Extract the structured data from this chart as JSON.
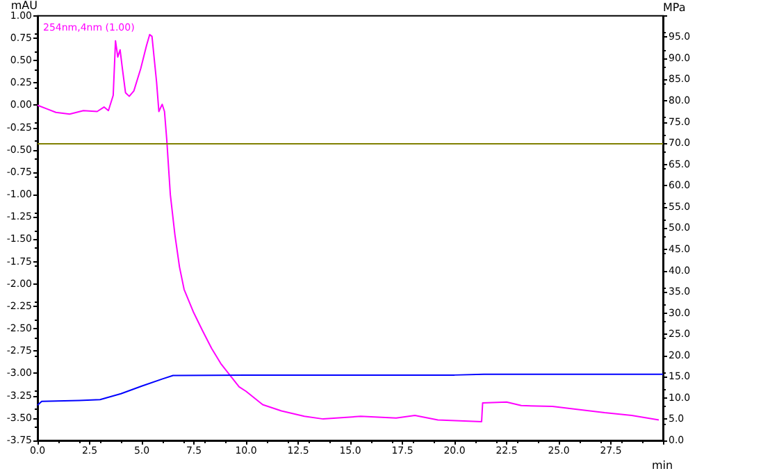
{
  "chart_data": {
    "type": "line",
    "ylabel": "mAU",
    "y2label": "MPa",
    "xlabel": "min",
    "legend": "top left",
    "grid": false,
    "marker": "none",
    "line_style": "solid",
    "xlim": [
      0,
      30
    ],
    "xticks": [
      {
        "value": 0,
        "label": "0.0"
      },
      {
        "value": 2.5,
        "label": "2.5"
      },
      {
        "value": 5,
        "label": "5.0"
      },
      {
        "value": 7.5,
        "label": "7.5"
      },
      {
        "value": 10,
        "label": "10.0"
      },
      {
        "value": 12.5,
        "label": "12.5"
      },
      {
        "value": 15,
        "label": "15.0"
      },
      {
        "value": 17.5,
        "label": "17.5"
      },
      {
        "value": 20,
        "label": "20.0"
      },
      {
        "value": 22.5,
        "label": "22.5"
      },
      {
        "value": 25,
        "label": "25.0"
      },
      {
        "value": 27.5,
        "label": "27.5"
      },
      {
        "value": 30,
        "label": null
      }
    ],
    "ylim": [
      -3.75,
      1
    ],
    "yticks": [
      {
        "value": -3.75,
        "label": "-3.75"
      },
      {
        "value": -3.5,
        "label": "-3.50"
      },
      {
        "value": -3.25,
        "label": "-3.25"
      },
      {
        "value": -3,
        "label": "-3.00"
      },
      {
        "value": -2.75,
        "label": "-2.75"
      },
      {
        "value": -2.5,
        "label": "-2.50"
      },
      {
        "value": -2.25,
        "label": "-2.25"
      },
      {
        "value": -2,
        "label": "-2.00"
      },
      {
        "value": -1.75,
        "label": "-1.75"
      },
      {
        "value": -1.5,
        "label": "-1.50"
      },
      {
        "value": -1.25,
        "label": "-1.25"
      },
      {
        "value": -1,
        "label": "-1.00"
      },
      {
        "value": -0.75,
        "label": "-0.75"
      },
      {
        "value": -0.5,
        "label": "-0.50"
      },
      {
        "value": -0.25,
        "label": "-0.25"
      },
      {
        "value": 0,
        "label": "0.00"
      },
      {
        "value": 0.25,
        "label": "0.25"
      },
      {
        "value": 0.5,
        "label": "0.50"
      },
      {
        "value": 0.75,
        "label": "0.75"
      },
      {
        "value": 1,
        "label": "1.00"
      }
    ],
    "y2lim": [
      0,
      100
    ],
    "y2ticks": [
      {
        "value": 0,
        "label": "0.0"
      },
      {
        "value": 5,
        "label": "5.0"
      },
      {
        "value": 10,
        "label": "10.0"
      },
      {
        "value": 15,
        "label": "15.0"
      },
      {
        "value": 20,
        "label": "20.0"
      },
      {
        "value": 25,
        "label": "25.0"
      },
      {
        "value": 30,
        "label": "30.0"
      },
      {
        "value": 35,
        "label": "35.0"
      },
      {
        "value": 40,
        "label": "40.0"
      },
      {
        "value": 45,
        "label": "45.0"
      },
      {
        "value": 50,
        "label": "50.0"
      },
      {
        "value": 55,
        "label": "55.0"
      },
      {
        "value": 60,
        "label": "60.0"
      },
      {
        "value": 65,
        "label": "65.0"
      },
      {
        "value": 70,
        "label": "70.0"
      },
      {
        "value": 75,
        "label": "75.0"
      },
      {
        "value": 80,
        "label": "80.0"
      },
      {
        "value": 85,
        "label": "85.0"
      },
      {
        "value": 90,
        "label": "90.0"
      },
      {
        "value": 95,
        "label": "95.0"
      },
      {
        "value": 100,
        "label": null
      }
    ],
    "ref_lines": [
      {
        "axis": "y2",
        "value": 70,
        "color": "#808000",
        "line_style": "solid"
      }
    ],
    "series": [
      {
        "name": "254nm,4nm (1.00)",
        "color": "#ff00ff",
        "x": [
          0,
          0.44,
          0.88,
          1.54,
          2.2,
          2.86,
          3.19,
          3.4,
          3.63,
          3.74,
          3.85,
          3.96,
          4.07,
          4.22,
          4.4,
          4.62,
          4.95,
          5.23,
          5.38,
          5.49,
          5.71,
          5.82,
          5.98,
          6.09,
          6.2,
          6.37,
          6.59,
          6.81,
          7.03,
          7.47,
          7.91,
          8.35,
          8.79,
          9.23,
          9.67,
          10,
          10.8,
          11.7,
          12.8,
          13.7,
          15.5,
          17.2,
          18.1,
          19.2,
          21.3,
          21.35,
          22.5,
          23.2,
          24.7,
          25.8,
          27.2,
          28.5,
          29.8
        ],
        "values": [
          0,
          -0.04,
          -0.08,
          -0.1,
          -0.06,
          -0.07,
          -0.02,
          -0.06,
          0.11,
          0.72,
          0.54,
          0.62,
          0.41,
          0.14,
          0.1,
          0.16,
          0.41,
          0.67,
          0.79,
          0.77,
          0.26,
          -0.07,
          0.01,
          -0.07,
          -0.39,
          -1,
          -1.45,
          -1.81,
          -2.06,
          -2.31,
          -2.52,
          -2.72,
          -2.89,
          -3.02,
          -3.15,
          -3.2,
          -3.35,
          -3.42,
          -3.48,
          -3.51,
          -3.48,
          -3.5,
          -3.47,
          -3.52,
          -3.54,
          -3.33,
          -3.32,
          -3.36,
          -3.37,
          -3.4,
          -3.44,
          -3.47,
          -3.52
        ]
      },
      {
        "color": "#0000ff",
        "axis": "y2",
        "x": [
          0,
          0.2,
          2,
          3,
          4,
          5,
          6,
          6.5,
          10,
          20,
          21.4,
          30
        ],
        "values": [
          8.3,
          9.2,
          9.4,
          9.6,
          11,
          12.8,
          14.5,
          15.3,
          15.4,
          15.4,
          15.6,
          15.6
        ]
      }
    ]
  }
}
